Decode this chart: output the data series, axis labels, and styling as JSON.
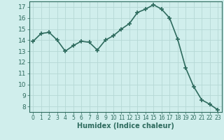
{
  "x": [
    0,
    1,
    2,
    3,
    4,
    5,
    6,
    7,
    8,
    9,
    10,
    11,
    12,
    13,
    14,
    15,
    16,
    17,
    18,
    19,
    20,
    21,
    22,
    23
  ],
  "y": [
    13.9,
    14.6,
    14.7,
    14.0,
    13.0,
    13.5,
    13.9,
    13.8,
    13.1,
    14.0,
    14.4,
    15.0,
    15.5,
    16.5,
    16.8,
    17.2,
    16.8,
    16.0,
    14.1,
    11.5,
    9.8,
    8.6,
    8.2,
    7.7
  ],
  "line_color": "#2e6b5e",
  "marker": "+",
  "marker_size": 5,
  "line_width": 1.2,
  "bg_color": "#d0eeec",
  "grid_color": "#b5d8d5",
  "xlabel": "Humidex (Indice chaleur)",
  "xlabel_fontsize": 7,
  "tick_color": "#2e6b5e",
  "tick_fontsize": 6.5,
  "ylim": [
    7.5,
    17.5
  ],
  "yticks": [
    8,
    9,
    10,
    11,
    12,
    13,
    14,
    15,
    16,
    17
  ],
  "xlim": [
    -0.5,
    23.5
  ],
  "xticks": [
    0,
    1,
    2,
    3,
    4,
    5,
    6,
    7,
    8,
    9,
    10,
    11,
    12,
    13,
    14,
    15,
    16,
    17,
    18,
    19,
    20,
    21,
    22,
    23
  ]
}
